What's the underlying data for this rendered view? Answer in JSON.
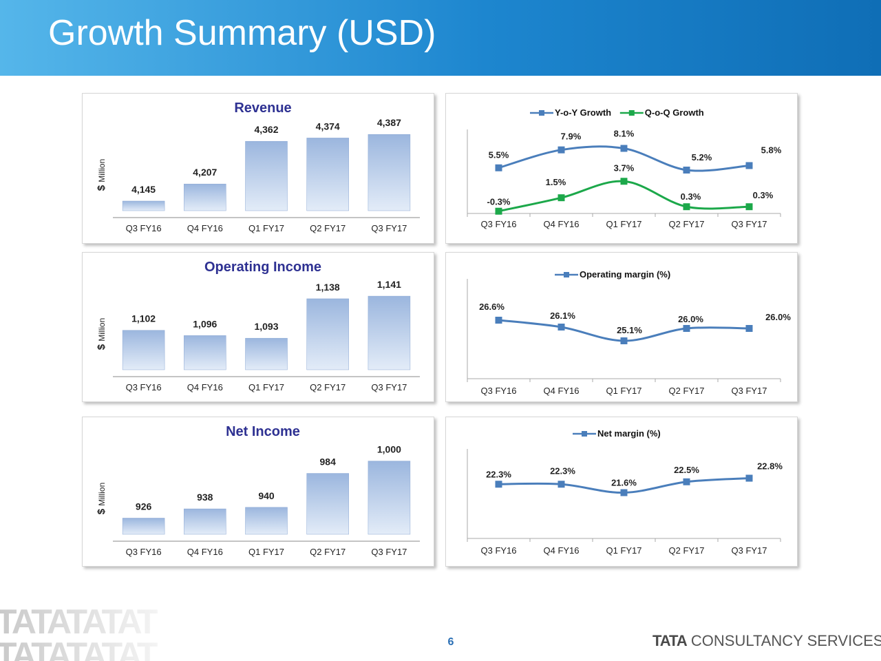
{
  "page": {
    "title": "Growth Summary (USD)",
    "page_number": "6"
  },
  "brand": {
    "logo_word": "TATA",
    "logo_pattern": "TATATATAT",
    "company_prefix": "TATA",
    "company_rest": "CONSULTANCY SERVICES"
  },
  "colors": {
    "bar_top": "#9bb6de",
    "bar_bottom": "#e3ecf8",
    "blue_series": "#4a7ebb",
    "green_series": "#1ca84a",
    "title": "#2e3192"
  },
  "chart_data": [
    {
      "id": "revenue",
      "type": "bar",
      "title": "Revenue",
      "ylabel_prefix": "$",
      "ylabel": "Million",
      "categories": [
        "Q3 FY16",
        "Q4 FY16",
        "Q1 FY17",
        "Q2 FY17",
        "Q3 FY17"
      ],
      "values": [
        4145,
        4207,
        4362,
        4374,
        4387
      ],
      "labels": [
        "4,145",
        "4,207",
        "4,362",
        "4,374",
        "4,387"
      ],
      "ylim": [
        4110,
        4390
      ]
    },
    {
      "id": "revenue-growth",
      "type": "line",
      "categories": [
        "Q3 FY16",
        "Q4 FY16",
        "Q1 FY17",
        "Q2 FY17",
        "Q3 FY17"
      ],
      "series": [
        {
          "name": "Y-o-Y Growth",
          "values": [
            5.5,
            7.9,
            8.1,
            5.2,
            5.8
          ],
          "labels": [
            "5.5%",
            "7.9%",
            "8.1%",
            "5.2%",
            "5.8%"
          ],
          "color": "#4a7ebb"
        },
        {
          "name": "Q-o-Q Growth",
          "values": [
            -0.3,
            1.5,
            3.7,
            0.3,
            0.3
          ],
          "labels": [
            "-0.3%",
            "1.5%",
            "3.7%",
            "0.3%",
            "0.3%"
          ],
          "color": "#1ca84a"
        }
      ],
      "ylim": [
        -0.6,
        11
      ]
    },
    {
      "id": "operating-income",
      "type": "bar",
      "title": "Operating Income",
      "ylabel_prefix": "$",
      "ylabel": "Million",
      "categories": [
        "Q3 FY16",
        "Q4 FY16",
        "Q1 FY17",
        "Q2 FY17",
        "Q3 FY17"
      ],
      "values": [
        1102,
        1096,
        1093,
        1138,
        1141
      ],
      "labels": [
        "1,102",
        "1,096",
        "1,093",
        "1,138",
        "1,141"
      ],
      "ylim": [
        1057,
        1145
      ]
    },
    {
      "id": "operating-margin",
      "type": "line",
      "categories": [
        "Q3 FY16",
        "Q4 FY16",
        "Q1 FY17",
        "Q2 FY17",
        "Q3 FY17"
      ],
      "series": [
        {
          "name": "Operating margin (%)",
          "values": [
            26.6,
            26.1,
            25.1,
            26.0,
            26.0
          ],
          "labels": [
            "26.6%",
            "26.1%",
            "25.1%",
            "26.0%",
            "26.0%"
          ],
          "color": "#4a7ebb"
        }
      ],
      "ylim": [
        22.5,
        29
      ]
    },
    {
      "id": "net-income",
      "type": "bar",
      "title": "Net Income",
      "ylabel_prefix": "$",
      "ylabel": "Million",
      "categories": [
        "Q3 FY16",
        "Q4 FY16",
        "Q1 FY17",
        "Q2 FY17",
        "Q3 FY17"
      ],
      "values": [
        926,
        938,
        940,
        984,
        1000
      ],
      "labels": [
        "926",
        "938",
        "940",
        "984",
        "1,000"
      ],
      "ylim": [
        905,
        1005
      ]
    },
    {
      "id": "net-margin",
      "type": "line",
      "categories": [
        "Q3 FY16",
        "Q4 FY16",
        "Q1 FY17",
        "Q2 FY17",
        "Q3 FY17"
      ],
      "series": [
        {
          "name": "Net margin (%)",
          "values": [
            22.3,
            22.3,
            21.6,
            22.5,
            22.8
          ],
          "labels": [
            "22.3%",
            "22.3%",
            "21.6%",
            "22.5%",
            "22.8%"
          ],
          "color": "#4a7ebb"
        }
      ],
      "ylim": [
        17,
        25
      ]
    }
  ]
}
